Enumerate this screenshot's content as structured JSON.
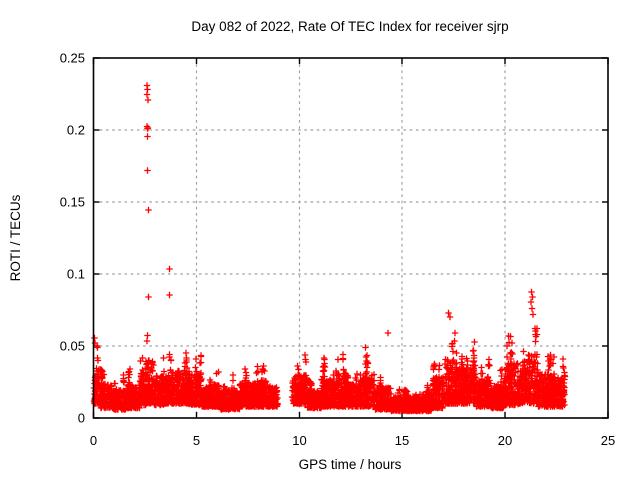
{
  "window": {
    "background": "#ffffff"
  },
  "chart_data": {
    "type": "scatter",
    "title": "Day 082 of 2022, Rate Of TEC Index for receiver sjrp",
    "xlabel": "GPS time / hours",
    "ylabel": "ROTI / TECUs",
    "xlim": [
      0,
      25
    ],
    "ylim": [
      0,
      0.25
    ],
    "xticks": [
      {
        "v": 0,
        "label": "0"
      },
      {
        "v": 5,
        "label": "5"
      },
      {
        "v": 10,
        "label": "10"
      },
      {
        "v": 15,
        "label": "15"
      },
      {
        "v": 20,
        "label": "20"
      },
      {
        "v": 25,
        "label": "25"
      }
    ],
    "yticks": [
      {
        "v": 0,
        "label": "0"
      },
      {
        "v": 0.05,
        "label": "0.05"
      },
      {
        "v": 0.1,
        "label": "0.1"
      },
      {
        "v": 0.15,
        "label": "0.15"
      },
      {
        "v": 0.2,
        "label": "0.2"
      },
      {
        "v": 0.25,
        "label": "0.25"
      }
    ],
    "grid": true,
    "legend": null,
    "marker": {
      "glyph": "plus",
      "halfsize": 3.2,
      "stroke_width": 1.3,
      "color": "#ff0000"
    },
    "colors": {
      "grid": "#a0a0a8",
      "axis": "#000000",
      "text": "#000000",
      "background": "#ffffff"
    },
    "data_gaps_hours": [
      [
        8.98,
        9.65
      ]
    ],
    "segments_format": "[t_start_hours, t_end_hours, roti_min, roti_envelope_max]",
    "segments": [
      [
        0.02,
        0.3,
        0.01,
        0.056
      ],
      [
        0.3,
        0.9,
        0.007,
        0.038
      ],
      [
        0.9,
        1.6,
        0.006,
        0.03
      ],
      [
        1.6,
        2.25,
        0.007,
        0.036
      ],
      [
        2.25,
        2.55,
        0.009,
        0.05
      ],
      [
        2.55,
        2.95,
        0.01,
        0.066
      ],
      [
        2.95,
        3.45,
        0.009,
        0.046
      ],
      [
        3.45,
        3.95,
        0.01,
        0.052
      ],
      [
        3.95,
        4.65,
        0.01,
        0.053
      ],
      [
        4.65,
        5.25,
        0.009,
        0.048
      ],
      [
        5.25,
        5.75,
        0.008,
        0.032
      ],
      [
        5.75,
        6.15,
        0.008,
        0.036
      ],
      [
        6.15,
        7.1,
        0.006,
        0.03
      ],
      [
        7.1,
        7.65,
        0.008,
        0.038
      ],
      [
        7.65,
        8.45,
        0.008,
        0.041
      ],
      [
        8.45,
        8.98,
        0.008,
        0.032
      ],
      [
        9.65,
        10.4,
        0.01,
        0.046
      ],
      [
        10.4,
        11.05,
        0.007,
        0.028
      ],
      [
        11.05,
        11.65,
        0.008,
        0.042
      ],
      [
        11.65,
        12.4,
        0.008,
        0.05
      ],
      [
        12.4,
        12.95,
        0.008,
        0.036
      ],
      [
        12.95,
        13.65,
        0.008,
        0.052
      ],
      [
        13.65,
        14.45,
        0.006,
        0.034
      ],
      [
        14.45,
        15.5,
        0.005,
        0.022
      ],
      [
        15.5,
        16.45,
        0.005,
        0.026
      ],
      [
        16.45,
        17.05,
        0.007,
        0.046
      ],
      [
        17.05,
        17.65,
        0.01,
        0.066
      ],
      [
        17.65,
        18.1,
        0.01,
        0.056
      ],
      [
        18.1,
        18.6,
        0.01,
        0.068
      ],
      [
        18.6,
        19.3,
        0.008,
        0.042
      ],
      [
        19.3,
        19.95,
        0.007,
        0.035
      ],
      [
        19.95,
        20.65,
        0.009,
        0.062
      ],
      [
        20.65,
        21.1,
        0.01,
        0.055
      ],
      [
        21.1,
        21.6,
        0.01,
        0.072
      ],
      [
        21.6,
        22.25,
        0.008,
        0.05
      ],
      [
        22.25,
        22.9,
        0.008,
        0.046
      ]
    ],
    "outliers_format": "[t_hours, roti]",
    "outliers": [
      [
        2.6,
        0.231
      ],
      [
        2.63,
        0.228
      ],
      [
        2.61,
        0.2245
      ],
      [
        2.64,
        0.221
      ],
      [
        2.6,
        0.2025
      ],
      [
        2.63,
        0.201
      ],
      [
        2.66,
        0.2015
      ],
      [
        2.63,
        0.1955
      ],
      [
        2.62,
        0.172
      ],
      [
        2.68,
        0.1445
      ],
      [
        3.69,
        0.1035
      ],
      [
        3.7,
        0.0854
      ],
      [
        2.67,
        0.084
      ],
      [
        14.32,
        0.059
      ],
      [
        17.25,
        0.073
      ],
      [
        17.32,
        0.07
      ],
      [
        21.28,
        0.0875
      ],
      [
        21.33,
        0.084
      ],
      [
        21.25,
        0.0805
      ],
      [
        21.3,
        0.076
      ],
      [
        21.36,
        0.072
      ],
      [
        0.05,
        0.0555
      ],
      [
        0.08,
        0.052
      ]
    ],
    "seed": 1337,
    "points_per_hour": 215,
    "bursts_per_hour": 2.6
  }
}
